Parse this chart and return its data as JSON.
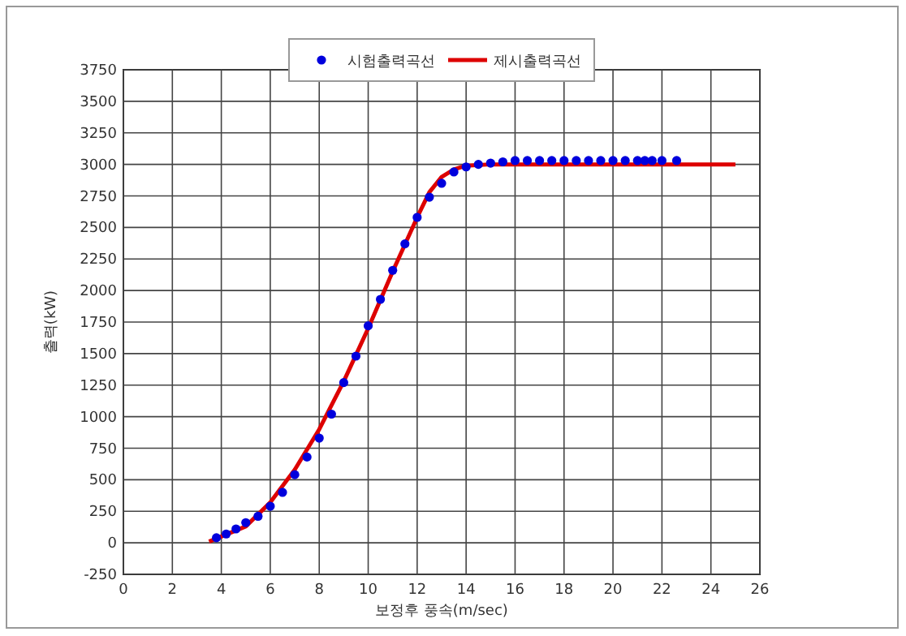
{
  "chart_data": {
    "type": "scatter",
    "xlabel": "보정후 풍속(m/sec)",
    "ylabel": "출력(kW)",
    "xlim": [
      0,
      26
    ],
    "xticks": [
      0,
      2,
      4,
      6,
      8,
      10,
      12,
      14,
      16,
      18,
      20,
      22,
      24,
      26
    ],
    "ylim": [
      -250,
      3750
    ],
    "yticks": [
      -250,
      0,
      250,
      500,
      750,
      1000,
      1250,
      1500,
      1750,
      2000,
      2250,
      2500,
      2750,
      3000,
      3250,
      3500,
      3750
    ],
    "grid": true,
    "legend": "top",
    "series": [
      {
        "name": "시험출력곡선",
        "type": "scatter",
        "marker": "circle",
        "color": "#0000dd",
        "x": [
          3.8,
          4.2,
          4.6,
          5.0,
          5.5,
          6.0,
          6.5,
          7.0,
          7.5,
          8.0,
          8.5,
          9.0,
          9.5,
          10.0,
          10.5,
          11.0,
          11.5,
          12.0,
          12.5,
          13.0,
          13.5,
          14.0,
          14.5,
          15.0,
          15.5,
          16.0,
          16.5,
          17.0,
          17.5,
          18.0,
          18.5,
          19.0,
          19.5,
          20.0,
          20.5,
          21.0,
          21.3,
          21.6,
          22.0,
          22.6
        ],
        "values": [
          40,
          70,
          110,
          160,
          210,
          290,
          400,
          540,
          680,
          830,
          1020,
          1270,
          1480,
          1720,
          1930,
          2160,
          2370,
          2580,
          2740,
          2850,
          2940,
          2980,
          3000,
          3010,
          3020,
          3030,
          3030,
          3030,
          3030,
          3030,
          3030,
          3030,
          3030,
          3030,
          3030,
          3030,
          3030,
          3030,
          3030,
          3030
        ]
      },
      {
        "name": "제시출력곡선",
        "type": "line",
        "marker": "none",
        "line_style": "solid",
        "color": "#dd0000",
        "x": [
          3.5,
          4,
          5,
          6,
          7,
          8,
          9,
          10,
          11,
          12,
          12.5,
          13,
          13.5,
          14,
          15,
          25
        ],
        "values": [
          10,
          50,
          130,
          320,
          580,
          900,
          1280,
          1700,
          2150,
          2580,
          2780,
          2900,
          2960,
          2990,
          3000,
          3000
        ]
      }
    ]
  }
}
